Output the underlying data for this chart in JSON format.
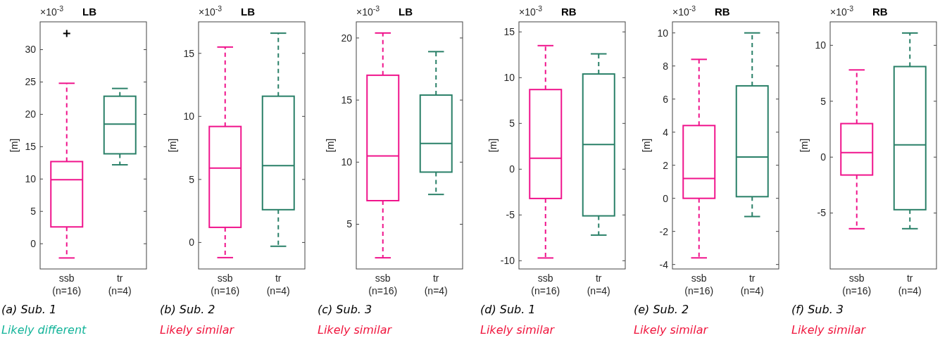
{
  "chart_data": [
    {
      "type": "box",
      "title": "LB",
      "ylabel": "[m]",
      "categories": [
        "ssb\n(n=16)",
        "tr\n(n=4)"
      ],
      "colors": [
        "#f0148c",
        "#2a8068"
      ],
      "line_style": "dashed",
      "marker": "cross",
      "grid": false,
      "ylim": [
        -3.9,
        34.3
      ],
      "yticks": [
        0,
        5,
        10,
        15,
        20,
        25,
        30
      ],
      "boxes": [
        {
          "low": -2.2,
          "q1": 2.6,
          "median": 9.9,
          "q3": 12.7,
          "high": 24.8,
          "outliers": [
            32.5
          ]
        },
        {
          "low": 12.2,
          "q1": 13.9,
          "median": 18.5,
          "q3": 22.8,
          "high": 24.0
        }
      ],
      "annotations": [
        "×10$^{-3}$",
        "(a) Sub. 1",
        "Likely different"
      ]
    },
    {
      "type": "box",
      "title": "LB",
      "ylabel": "[m]",
      "categories": [
        "ssb\n(n=16)",
        "tr\n(n=4)"
      ],
      "colors": [
        "#f0148c",
        "#2a8068"
      ],
      "line_style": "dashed",
      "grid": false,
      "ylim": [
        -2.1,
        17.5
      ],
      "yticks": [
        0,
        5,
        10,
        15
      ],
      "boxes": [
        {
          "low": -1.2,
          "q1": 1.2,
          "median": 5.9,
          "q3": 9.2,
          "high": 15.5
        },
        {
          "low": -0.3,
          "q1": 2.6,
          "median": 6.1,
          "q3": 11.6,
          "high": 16.6
        }
      ],
      "annotations": [
        "×10$^{-3}$",
        "(b) Sub. 2",
        "Likely similar"
      ]
    },
    {
      "type": "box",
      "title": "LB",
      "ylabel": "[m]",
      "categories": [
        "ssb\n(n=16)",
        "tr\n(n=4)"
      ],
      "colors": [
        "#f0148c",
        "#2a8068"
      ],
      "line_style": "dashed",
      "grid": false,
      "ylim": [
        1.4,
        21.3
      ],
      "yticks": [
        5,
        10,
        15,
        20
      ],
      "boxes": [
        {
          "low": 2.3,
          "q1": 6.9,
          "median": 10.5,
          "q3": 17.0,
          "high": 20.4
        },
        {
          "low": 7.4,
          "q1": 9.2,
          "median": 11.5,
          "q3": 15.4,
          "high": 18.9
        }
      ],
      "annotations": [
        "×10$^{-3}$",
        "(c) Sub. 3",
        "Likely similar"
      ]
    },
    {
      "type": "box",
      "title": "RB",
      "ylabel": "[m]",
      "categories": [
        "ssb\n(n=16)",
        "tr\n(n=4)"
      ],
      "colors": [
        "#f0148c",
        "#2a8068"
      ],
      "line_style": "dashed",
      "grid": false,
      "ylim": [
        -10.9,
        16.1
      ],
      "yticks": [
        -10,
        -5,
        0,
        5,
        10,
        15
      ],
      "boxes": [
        {
          "low": -9.7,
          "q1": -3.2,
          "median": 1.2,
          "q3": 8.7,
          "high": 13.5
        },
        {
          "low": -7.2,
          "q1": -5.1,
          "median": 2.7,
          "q3": 10.4,
          "high": 12.6
        }
      ],
      "annotations": [
        "×10$^{-3}$",
        "(d) Sub. 1",
        "Likely similar"
      ]
    },
    {
      "type": "box",
      "title": "RB",
      "ylabel": "[m]",
      "categories": [
        "ssb\n(n=16)",
        "tr\n(n=4)"
      ],
      "colors": [
        "#f0148c",
        "#2a8068"
      ],
      "line_style": "dashed",
      "grid": false,
      "ylim": [
        -4.27,
        10.67
      ],
      "yticks": [
        -4,
        -2,
        0,
        2,
        4,
        6,
        8,
        10
      ],
      "boxes": [
        {
          "low": -3.6,
          "q1": 0,
          "median": 1.2,
          "q3": 4.4,
          "high": 8.4
        },
        {
          "low": -1.1,
          "q1": 0.1,
          "median": 2.5,
          "q3": 6.8,
          "high": 10.0
        }
      ],
      "annotations": [
        "×10$^{-3}$",
        "(e) Sub. 2",
        "Likely similar"
      ]
    },
    {
      "type": "box",
      "title": "RB",
      "ylabel": "[m]",
      "categories": [
        "ssb\n(n=16)",
        "tr\n(n=4)"
      ],
      "colors": [
        "#f0148c",
        "#2a8068"
      ],
      "line_style": "dashed",
      "grid": false,
      "ylim": [
        -10.0,
        12.1
      ],
      "yticks": [
        -5,
        0,
        5,
        10
      ],
      "boxes": [
        {
          "low": -6.4,
          "q1": -1.6,
          "median": 0.4,
          "q3": 3.0,
          "high": 7.8
        },
        {
          "low": -6.4,
          "q1": -4.7,
          "median": 1.1,
          "q3": 8.1,
          "high": 11.1
        }
      ],
      "annotations": [
        "×10$^{-3}$",
        "(f) Sub. 3",
        "Likely similar"
      ]
    }
  ]
}
